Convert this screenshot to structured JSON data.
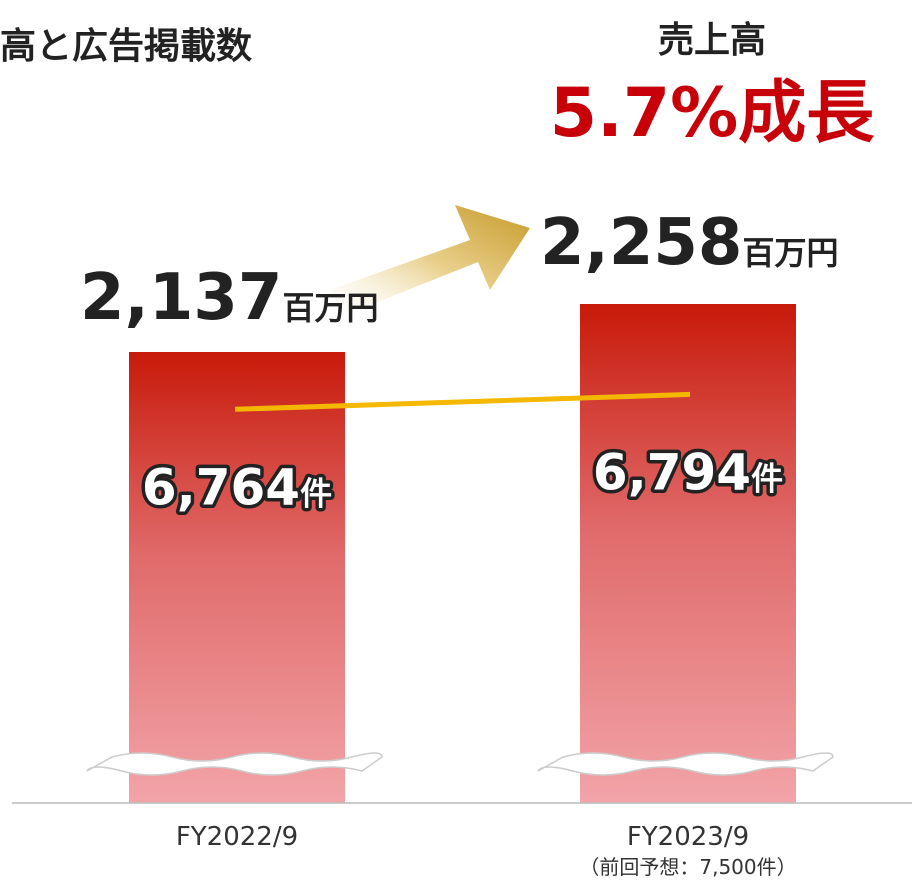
{
  "chart_data": {
    "type": "bar",
    "title": "高と広告掲載数",
    "headline": "売上高",
    "growth": "5.7%成長",
    "categories": [
      "FY2022/9",
      "FY2023/9"
    ],
    "note": "（前回予想：7,500件）",
    "series": [
      {
        "values": [
          2137,
          2258
        ],
        "value_labels": [
          "2,137",
          "2,258"
        ],
        "unit": "百万円",
        "color": "#c81a0a"
      },
      {
        "values": [
          6764,
          6794
        ],
        "value_labels": [
          "6,764",
          "6,794"
        ],
        "unit": "件",
        "color": "#f5b800",
        "axis": "y2"
      }
    ],
    "ylim": [
      1000,
      2500
    ],
    "y2lim": [
      5970,
      7170
    ]
  }
}
